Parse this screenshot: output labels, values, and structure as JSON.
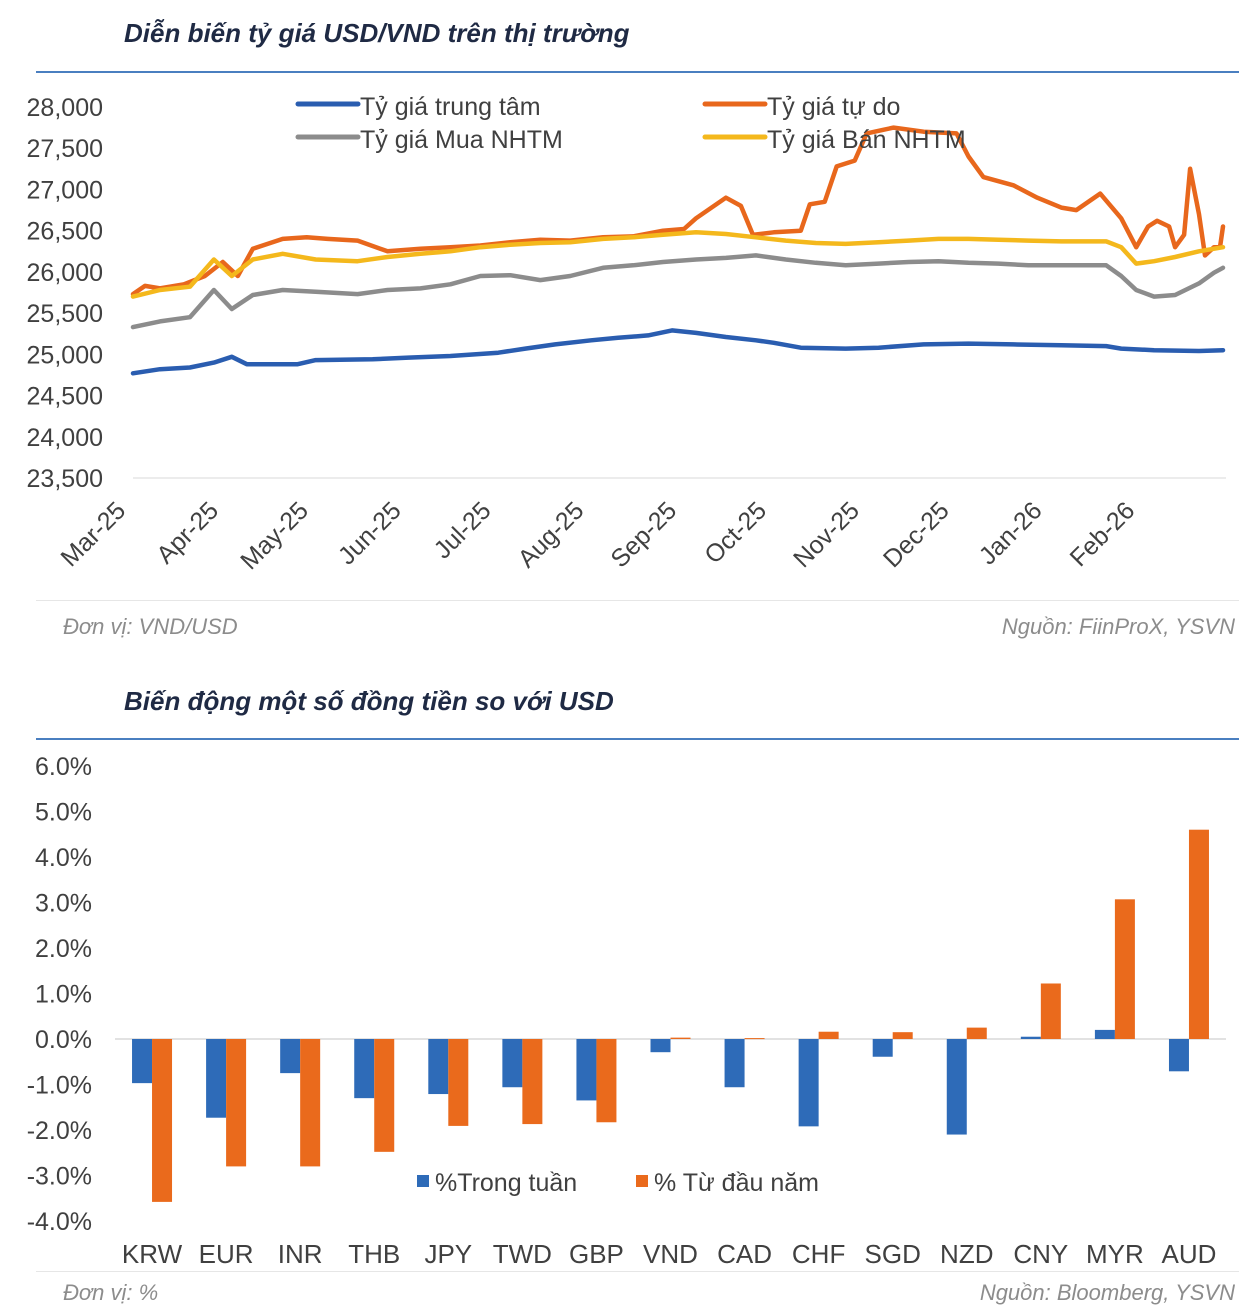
{
  "chart1": {
    "title": "Diễn biến tỷ giá USD/VND trên thị trường",
    "unit_note": "Đơn vị: VND/USD",
    "source_note": "Nguồn: FiinProX, YSVN"
  },
  "chart2": {
    "title": "Biến động một số đồng tiền so với USD",
    "unit_note": "Đơn vị: %",
    "source_note": "Nguồn: Bloomberg, YSVN"
  },
  "colors": {
    "central": "#2a5db0",
    "free": "#e8671c",
    "buy": "#8c8c8c",
    "sell": "#f4b81c",
    "weekly": "#2e6bb8",
    "ytd": "#ea6a1c",
    "rule": "#4a7fc0"
  },
  "chart_data": [
    {
      "type": "line",
      "title": "Diễn biến tỷ giá USD/VND trên thị trường",
      "ylim": [
        23500,
        28000
      ],
      "yticks": [
        28000,
        27500,
        27000,
        26500,
        26000,
        25500,
        25000,
        24500,
        24000,
        23500
      ],
      "ytick_labels": [
        "28,000",
        "27,500",
        "27,000",
        "26,500",
        "26,000",
        "25,500",
        "25,000",
        "24,500",
        "24,000",
        "23,500"
      ],
      "x_start": "2025-03-01",
      "x_end": "2026-03-01",
      "xtick_dates": [
        "2025-03-01",
        "2025-04-01",
        "2025-05-01",
        "2025-06-01",
        "2025-07-01",
        "2025-08-01",
        "2025-09-01",
        "2025-10-01",
        "2025-11-01",
        "2025-12-01",
        "2026-01-01",
        "2026-02-01"
      ],
      "xtick_labels": [
        "Mar-25",
        "Apr-25",
        "May-25",
        "Jun-25",
        "Jul-25",
        "Aug-25",
        "Sep-25",
        "Oct-25",
        "Nov-25",
        "Dec-25",
        "Jan-26",
        "Feb-26"
      ],
      "legend_position": "top",
      "grid": false,
      "series": [
        {
          "name": "Tỷ giá trung tâm",
          "color_key": "central",
          "points": [
            [
              "2025-03-01",
              24770
            ],
            [
              "2025-03-10",
              24820
            ],
            [
              "2025-03-20",
              24840
            ],
            [
              "2025-03-28",
              24900
            ],
            [
              "2025-04-03",
              24970
            ],
            [
              "2025-04-08",
              24880
            ],
            [
              "2025-04-25",
              24880
            ],
            [
              "2025-05-01",
              24930
            ],
            [
              "2025-05-20",
              24940
            ],
            [
              "2025-06-01",
              24960
            ],
            [
              "2025-06-15",
              24980
            ],
            [
              "2025-07-01",
              25020
            ],
            [
              "2025-07-10",
              25070
            ],
            [
              "2025-07-20",
              25120
            ],
            [
              "2025-08-01",
              25170
            ],
            [
              "2025-08-10",
              25200
            ],
            [
              "2025-08-20",
              25230
            ],
            [
              "2025-08-28",
              25290
            ],
            [
              "2025-09-05",
              25260
            ],
            [
              "2025-09-15",
              25210
            ],
            [
              "2025-09-25",
              25170
            ],
            [
              "2025-10-01",
              25140
            ],
            [
              "2025-10-10",
              25080
            ],
            [
              "2025-10-25",
              25070
            ],
            [
              "2025-11-05",
              25080
            ],
            [
              "2025-11-20",
              25120
            ],
            [
              "2025-12-05",
              25130
            ],
            [
              "2025-12-20",
              25120
            ],
            [
              "2026-01-05",
              25110
            ],
            [
              "2026-01-20",
              25100
            ],
            [
              "2026-01-25",
              25070
            ],
            [
              "2026-02-05",
              25050
            ],
            [
              "2026-02-20",
              25040
            ],
            [
              "2026-02-28",
              25050
            ]
          ]
        },
        {
          "name": "Tỷ giá tự do",
          "color_key": "free",
          "points": [
            [
              "2025-03-01",
              25730
            ],
            [
              "2025-03-05",
              25830
            ],
            [
              "2025-03-10",
              25800
            ],
            [
              "2025-03-18",
              25850
            ],
            [
              "2025-03-25",
              25950
            ],
            [
              "2025-03-31",
              26120
            ],
            [
              "2025-04-05",
              25950
            ],
            [
              "2025-04-10",
              26280
            ],
            [
              "2025-04-20",
              26400
            ],
            [
              "2025-04-28",
              26420
            ],
            [
              "2025-05-05",
              26400
            ],
            [
              "2025-05-15",
              26380
            ],
            [
              "2025-05-25",
              26250
            ],
            [
              "2025-06-05",
              26280
            ],
            [
              "2025-06-15",
              26300
            ],
            [
              "2025-06-25",
              26320
            ],
            [
              "2025-07-05",
              26360
            ],
            [
              "2025-07-15",
              26390
            ],
            [
              "2025-07-25",
              26380
            ],
            [
              "2025-08-05",
              26420
            ],
            [
              "2025-08-15",
              26430
            ],
            [
              "2025-08-25",
              26500
            ],
            [
              "2025-09-01",
              26520
            ],
            [
              "2025-09-05",
              26650
            ],
            [
              "2025-09-15",
              26900
            ],
            [
              "2025-09-20",
              26800
            ],
            [
              "2025-09-24",
              26450
            ],
            [
              "2025-10-01",
              26480
            ],
            [
              "2025-10-10",
              26500
            ],
            [
              "2025-10-13",
              26820
            ],
            [
              "2025-10-18",
              26850
            ],
            [
              "2025-10-22",
              27280
            ],
            [
              "2025-10-28",
              27350
            ],
            [
              "2025-11-01",
              27680
            ],
            [
              "2025-11-10",
              27750
            ],
            [
              "2025-11-20",
              27700
            ],
            [
              "2025-12-01",
              27680
            ],
            [
              "2025-12-05",
              27400
            ],
            [
              "2025-12-10",
              27150
            ],
            [
              "2025-12-20",
              27050
            ],
            [
              "2025-12-28",
              26900
            ],
            [
              "2026-01-05",
              26780
            ],
            [
              "2026-01-10",
              26750
            ],
            [
              "2026-01-18",
              26950
            ],
            [
              "2026-01-25",
              26650
            ],
            [
              "2026-01-30",
              26300
            ],
            [
              "2026-02-03",
              26550
            ],
            [
              "2026-02-06",
              26620
            ],
            [
              "2026-02-10",
              26550
            ],
            [
              "2026-02-12",
              26300
            ],
            [
              "2026-02-15",
              26450
            ],
            [
              "2026-02-17",
              27250
            ],
            [
              "2026-02-20",
              26700
            ],
            [
              "2026-02-22",
              26200
            ],
            [
              "2026-02-25",
              26300
            ],
            [
              "2026-02-27",
              26300
            ],
            [
              "2026-02-28",
              26550
            ]
          ]
        },
        {
          "name": "Tỷ giá Mua NHTM",
          "color_key": "buy",
          "points": [
            [
              "2025-03-01",
              25330
            ],
            [
              "2025-03-10",
              25400
            ],
            [
              "2025-03-20",
              25450
            ],
            [
              "2025-03-28",
              25780
            ],
            [
              "2025-04-03",
              25550
            ],
            [
              "2025-04-10",
              25720
            ],
            [
              "2025-04-20",
              25780
            ],
            [
              "2025-05-01",
              25760
            ],
            [
              "2025-05-15",
              25730
            ],
            [
              "2025-05-25",
              25780
            ],
            [
              "2025-06-05",
              25800
            ],
            [
              "2025-06-15",
              25850
            ],
            [
              "2025-06-25",
              25950
            ],
            [
              "2025-07-05",
              25960
            ],
            [
              "2025-07-15",
              25900
            ],
            [
              "2025-07-25",
              25950
            ],
            [
              "2025-08-05",
              26050
            ],
            [
              "2025-08-15",
              26080
            ],
            [
              "2025-08-25",
              26120
            ],
            [
              "2025-09-05",
              26150
            ],
            [
              "2025-09-15",
              26170
            ],
            [
              "2025-09-25",
              26200
            ],
            [
              "2025-10-05",
              26150
            ],
            [
              "2025-10-15",
              26110
            ],
            [
              "2025-10-25",
              26080
            ],
            [
              "2025-11-05",
              26100
            ],
            [
              "2025-11-15",
              26120
            ],
            [
              "2025-11-25",
              26130
            ],
            [
              "2025-12-05",
              26110
            ],
            [
              "2025-12-15",
              26100
            ],
            [
              "2025-12-25",
              26080
            ],
            [
              "2026-01-05",
              26080
            ],
            [
              "2026-01-20",
              26080
            ],
            [
              "2026-01-25",
              25950
            ],
            [
              "2026-01-30",
              25780
            ],
            [
              "2026-02-05",
              25700
            ],
            [
              "2026-02-12",
              25720
            ],
            [
              "2026-02-20",
              25860
            ],
            [
              "2026-02-25",
              25990
            ],
            [
              "2026-02-28",
              26050
            ]
          ]
        },
        {
          "name": "Tỷ giá Bán NHTM",
          "color_key": "sell",
          "points": [
            [
              "2025-03-01",
              25700
            ],
            [
              "2025-03-10",
              25780
            ],
            [
              "2025-03-20",
              25820
            ],
            [
              "2025-03-28",
              26150
            ],
            [
              "2025-04-03",
              25950
            ],
            [
              "2025-04-10",
              26150
            ],
            [
              "2025-04-20",
              26220
            ],
            [
              "2025-05-01",
              26150
            ],
            [
              "2025-05-15",
              26130
            ],
            [
              "2025-05-25",
              26180
            ],
            [
              "2025-06-05",
              26220
            ],
            [
              "2025-06-15",
              26250
            ],
            [
              "2025-06-25",
              26300
            ],
            [
              "2025-07-05",
              26330
            ],
            [
              "2025-07-15",
              26350
            ],
            [
              "2025-07-25",
              26360
            ],
            [
              "2025-08-05",
              26400
            ],
            [
              "2025-08-15",
              26420
            ],
            [
              "2025-08-25",
              26450
            ],
            [
              "2025-09-05",
              26480
            ],
            [
              "2025-09-15",
              26460
            ],
            [
              "2025-09-25",
              26420
            ],
            [
              "2025-10-05",
              26380
            ],
            [
              "2025-10-15",
              26350
            ],
            [
              "2025-10-25",
              26340
            ],
            [
              "2025-11-05",
              26360
            ],
            [
              "2025-11-15",
              26380
            ],
            [
              "2025-11-25",
              26400
            ],
            [
              "2025-12-05",
              26400
            ],
            [
              "2025-12-15",
              26390
            ],
            [
              "2025-12-25",
              26380
            ],
            [
              "2026-01-05",
              26370
            ],
            [
              "2026-01-20",
              26370
            ],
            [
              "2026-01-25",
              26300
            ],
            [
              "2026-01-30",
              26100
            ],
            [
              "2026-02-05",
              26130
            ],
            [
              "2026-02-12",
              26180
            ],
            [
              "2026-02-20",
              26250
            ],
            [
              "2026-02-28",
              26300
            ]
          ]
        }
      ]
    },
    {
      "type": "bar",
      "title": "Biến động một số đồng tiền so với USD",
      "categories": [
        "KRW",
        "EUR",
        "INR",
        "THB",
        "JPY",
        "TWD",
        "GBP",
        "VND",
        "CAD",
        "CHF",
        "SGD",
        "NZD",
        "CNY",
        "MYR",
        "AUD"
      ],
      "ylim": [
        -4.0,
        6.0
      ],
      "yticks": [
        6,
        5,
        4,
        3,
        2,
        1,
        0,
        -1,
        -2,
        -3,
        -4
      ],
      "ytick_labels": [
        "6.0%",
        "5.0%",
        "4.0%",
        "3.0%",
        "2.0%",
        "1.0%",
        "0.0%",
        "-1.0%",
        "-2.0%",
        "-3.0%",
        "-4.0%"
      ],
      "legend_position": "bottom-center",
      "grid": false,
      "series": [
        {
          "name": "%Trong tuần",
          "color_key": "weekly",
          "values": [
            -0.97,
            -1.73,
            -0.75,
            -1.3,
            -1.21,
            -1.06,
            -1.35,
            -0.29,
            -1.06,
            -1.92,
            -0.39,
            -2.1,
            0.05,
            0.2,
            -0.71
          ]
        },
        {
          "name": "% Từ đầu năm",
          "color_key": "ytd",
          "values": [
            -3.58,
            -2.8,
            -2.8,
            -2.48,
            -1.91,
            -1.87,
            -1.83,
            0.03,
            0.02,
            0.16,
            0.15,
            0.25,
            1.22,
            3.07,
            4.6
          ]
        }
      ]
    }
  ]
}
